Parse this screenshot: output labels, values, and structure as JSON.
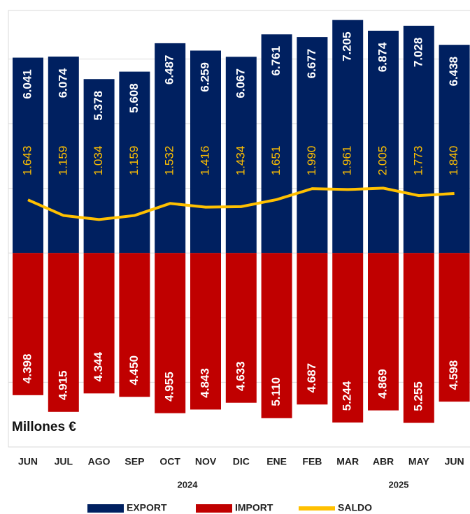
{
  "chart_data": {
    "type": "bar",
    "categories": [
      "JUN",
      "JUL",
      "AGO",
      "SEP",
      "OCT",
      "NOV",
      "DIC",
      "ENE",
      "FEB",
      "MAR",
      "ABR",
      "MAY",
      "JUN"
    ],
    "year_labels": [
      "2024",
      "2025"
    ],
    "annotation": "Millones €",
    "series": [
      {
        "name": "EXPORT",
        "color": "#002060",
        "values": [
          6041,
          6074,
          5378,
          5608,
          6487,
          6259,
          6067,
          6761,
          6677,
          7205,
          6874,
          7028,
          6438
        ],
        "value_labels": [
          "6.041",
          "6.074",
          "5.378",
          "5.608",
          "6.487",
          "6.259",
          "6.067",
          "6.761",
          "6.677",
          "7.205",
          "6.874",
          "7.028",
          "6.438"
        ]
      },
      {
        "name": "IMPORT",
        "color": "#c00000",
        "values": [
          4398,
          4915,
          4344,
          4450,
          4955,
          4843,
          4633,
          5110,
          4687,
          5244,
          4869,
          5255,
          4598
        ],
        "value_labels": [
          "4.398",
          "4.915",
          "4.344",
          "4.450",
          "4.955",
          "4.843",
          "4.633",
          "5.110",
          "4.687",
          "5.244",
          "4.869",
          "5.255",
          "4.598"
        ]
      },
      {
        "name": "SALDO",
        "color": "#ffc000",
        "type": "line",
        "values": [
          1643,
          1159,
          1034,
          1159,
          1532,
          1416,
          1434,
          1651,
          1990,
          1961,
          2005,
          1773,
          1840
        ],
        "value_labels": [
          "1.643",
          "1.159",
          "1.034",
          "1.159",
          "1.532",
          "1.416",
          "1.434",
          "1.651",
          "1.990",
          "1.961",
          "2.005",
          "1.773",
          "1.840"
        ]
      }
    ],
    "ylim": [
      -6000,
      7500
    ],
    "yticks": [
      -4000,
      -2000,
      0,
      2000,
      4000,
      6000
    ],
    "grid": true
  }
}
